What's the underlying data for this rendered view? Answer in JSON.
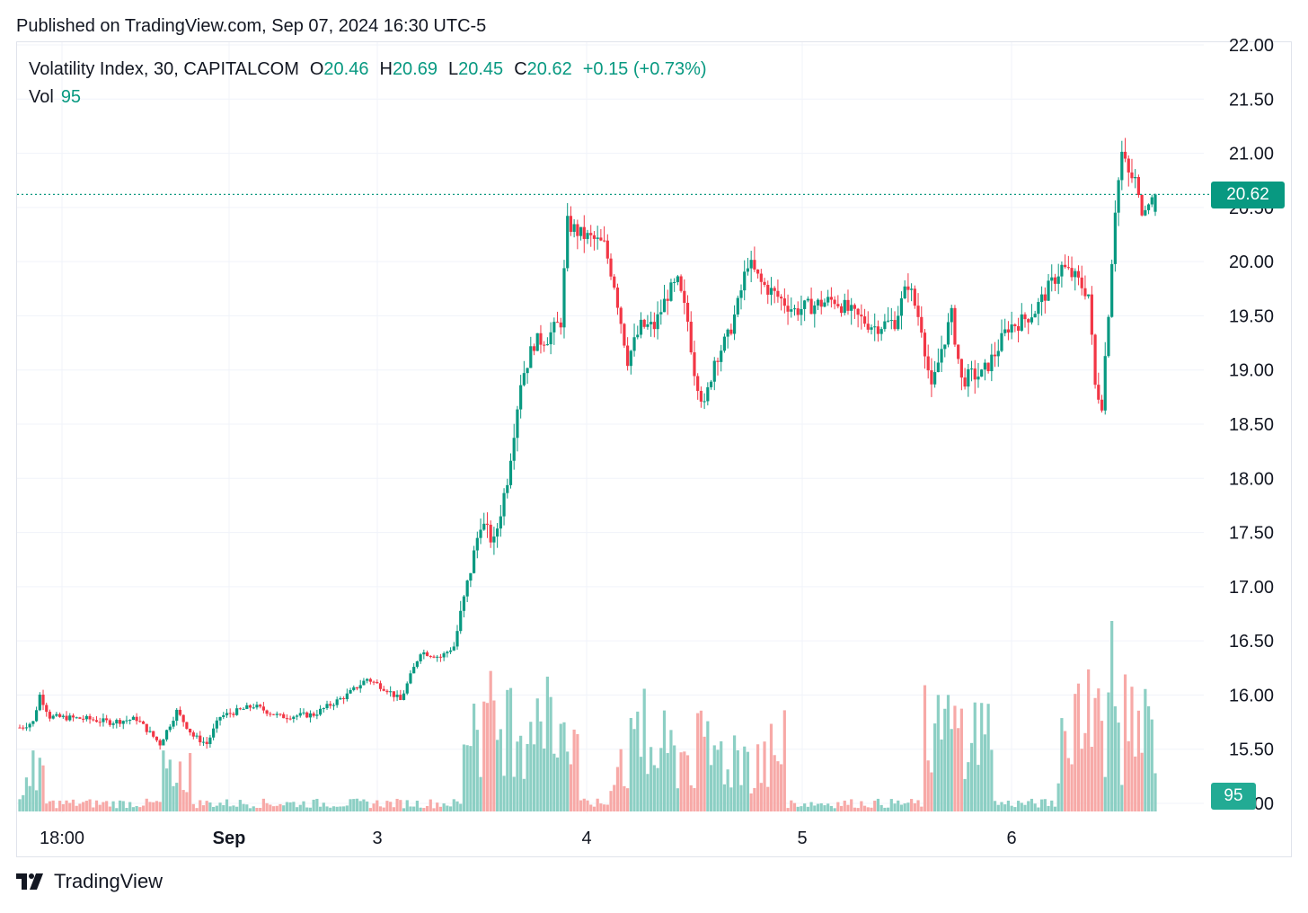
{
  "header": {
    "published": "Published on TradingView.com, Sep 07, 2024 16:30 UTC-5"
  },
  "legend": {
    "symbol": "Volatility Index, 30, CAPITALCOM",
    "open_label": "O",
    "open": "20.46",
    "high_label": "H",
    "high": "20.69",
    "low_label": "L",
    "low": "20.45",
    "close_label": "C",
    "close": "20.62",
    "change": "+0.15 (+0.73%)",
    "vol_label": "Vol",
    "vol": "95"
  },
  "price_tag": "20.62",
  "vol_tag": "95",
  "footer": {
    "brand": "TradingView"
  },
  "colors": {
    "up": "#089981",
    "down": "#f23645",
    "vol_up": "#8ccfc4",
    "vol_down": "#f7a9a7",
    "grid": "#f0f3fa"
  },
  "chart_data": {
    "type": "candlestick",
    "title": "Volatility Index, 30, CAPITALCOM",
    "ylim": [
      14.75,
      22.0
    ],
    "y_ticks": [
      "22.00",
      "21.50",
      "21.00",
      "20.50",
      "20.00",
      "19.50",
      "19.00",
      "18.50",
      "18.00",
      "17.50",
      "17.00",
      "16.50",
      "16.00",
      "15.50",
      "15.00"
    ],
    "x_ticks": [
      {
        "label": "18:00",
        "bold": false
      },
      {
        "label": "Sep",
        "bold": true
      },
      {
        "label": "3",
        "bold": false
      },
      {
        "label": "4",
        "bold": false
      },
      {
        "label": "5",
        "bold": false
      },
      {
        "label": "6",
        "bold": false
      }
    ],
    "last_price": 20.62,
    "volume": [
      {
        "v": 2,
        "d": false
      },
      {
        "v": 12,
        "d": false
      },
      {
        "v": 28,
        "d": false
      },
      {
        "v": 50,
        "d": false
      },
      {
        "v": 44,
        "d": false
      },
      {
        "v": 20,
        "d": true
      },
      {
        "v": 2,
        "d": true
      },
      {
        "v": 1,
        "d": true
      },
      {
        "v": 1,
        "d": true
      },
      {
        "v": 1,
        "d": false
      },
      {
        "v": 1,
        "d": true
      },
      {
        "v": 1,
        "d": true
      },
      {
        "v": 1,
        "d": true
      },
      {
        "v": 1,
        "d": false
      },
      {
        "v": 1,
        "d": true
      },
      {
        "v": 1,
        "d": true
      },
      {
        "v": 1,
        "d": false
      },
      {
        "v": 1,
        "d": true
      },
      {
        "v": 1,
        "d": true
      },
      {
        "v": 1,
        "d": true
      },
      {
        "v": 1,
        "d": false
      },
      {
        "v": 1,
        "d": true
      },
      {
        "v": 1,
        "d": false
      },
      {
        "v": 1,
        "d": true
      },
      {
        "v": 1,
        "d": true
      },
      {
        "v": 2,
        "d": false
      },
      {
        "v": 1,
        "d": true
      },
      {
        "v": 1,
        "d": true
      },
      {
        "v": 1,
        "d": true
      },
      {
        "v": 1,
        "d": true
      },
      {
        "v": 1,
        "d": false
      },
      {
        "v": 1,
        "d": true
      },
      {
        "v": 1,
        "d": true
      },
      {
        "v": 1,
        "d": true
      },
      {
        "v": 3,
        "d": true
      },
      {
        "v": 1,
        "d": false
      },
      {
        "v": 2,
        "d": true
      },
      {
        "v": 5,
        "d": true
      },
      {
        "v": 1,
        "d": true
      },
      {
        "v": 1,
        "d": true
      },
      {
        "v": 14,
        "d": false
      },
      {
        "v": 16,
        "d": false
      },
      {
        "v": 12,
        "d": false
      },
      {
        "v": 14,
        "d": false
      },
      {
        "v": 22,
        "d": false
      },
      {
        "v": 28,
        "d": false
      },
      {
        "v": 22,
        "d": true
      },
      {
        "v": 34,
        "d": true
      },
      {
        "v": 12,
        "d": true
      },
      {
        "v": 10,
        "d": true
      },
      {
        "v": 6,
        "d": true
      },
      {
        "v": 3,
        "d": true
      },
      {
        "v": 1,
        "d": true
      },
      {
        "v": 1,
        "d": false
      },
      {
        "v": 1,
        "d": false
      },
      {
        "v": 1,
        "d": false
      },
      {
        "v": 1,
        "d": false
      },
      {
        "v": 1,
        "d": false
      },
      {
        "v": 1,
        "d": false
      },
      {
        "v": 1,
        "d": false
      },
      {
        "v": 1,
        "d": false
      },
      {
        "v": 1,
        "d": false
      },
      {
        "v": 1,
        "d": false
      },
      {
        "v": 1,
        "d": false
      },
      {
        "v": 1,
        "d": false
      },
      {
        "v": 1,
        "d": false
      },
      {
        "v": 1,
        "d": false
      },
      {
        "v": 1,
        "d": false
      },
      {
        "v": 1,
        "d": false
      },
      {
        "v": 1,
        "d": false
      },
      {
        "v": 1,
        "d": false
      },
      {
        "v": 1,
        "d": false
      },
      {
        "v": 1,
        "d": false
      },
      {
        "v": 1,
        "d": false
      },
      {
        "v": 1,
        "d": false
      },
      {
        "v": 1,
        "d": false
      },
      {
        "v": 1,
        "d": false
      },
      {
        "v": 1,
        "d": false
      },
      {
        "v": 1,
        "d": false
      },
      {
        "v": 1,
        "d": false
      },
      {
        "v": 1,
        "d": false
      },
      {
        "v": 1,
        "d": true
      },
      {
        "v": 1,
        "d": false
      },
      {
        "v": 1,
        "d": false
      },
      {
        "v": 1,
        "d": false
      },
      {
        "v": 1,
        "d": false
      },
      {
        "v": 1,
        "d": false
      },
      {
        "v": 1,
        "d": false
      },
      {
        "v": 1,
        "d": false
      },
      {
        "v": 1,
        "d": false
      },
      {
        "v": 1,
        "d": false
      },
      {
        "v": 1,
        "d": false
      },
      {
        "v": 1,
        "d": false
      },
      {
        "v": 1,
        "d": false
      },
      {
        "v": 1,
        "d": false
      },
      {
        "v": 1,
        "d": false
      },
      {
        "v": 1,
        "d": false
      },
      {
        "v": 1,
        "d": false
      },
      {
        "v": 2,
        "d": false
      },
      {
        "v": 1,
        "d": false
      },
      {
        "v": 1,
        "d": false
      },
      {
        "v": 1,
        "d": false
      },
      {
        "v": 1,
        "d": false
      },
      {
        "v": 1,
        "d": false
      },
      {
        "v": 2,
        "d": false
      },
      {
        "v": 1,
        "d": false
      },
      {
        "v": 1,
        "d": false
      },
      {
        "v": 1,
        "d": false
      },
      {
        "v": 1,
        "d": false
      },
      {
        "v": 1,
        "d": false
      },
      {
        "v": 1,
        "d": false
      },
      {
        "v": 2,
        "d": false
      },
      {
        "v": 1,
        "d": false
      },
      {
        "v": 1,
        "d": false
      },
      {
        "v": 1,
        "d": false
      },
      {
        "v": 1,
        "d": false
      },
      {
        "v": 1,
        "d": false
      },
      {
        "v": 1,
        "d": false
      },
      {
        "v": 1,
        "d": false
      },
      {
        "v": 2,
        "d": false
      },
      {
        "v": 1,
        "d": false
      },
      {
        "v": 1,
        "d": false
      },
      {
        "v": 1,
        "d": false
      },
      {
        "v": 2,
        "d": true
      },
      {
        "v": 2,
        "d": false
      },
      {
        "v": 2,
        "d": true
      },
      {
        "v": 3,
        "d": true
      },
      {
        "v": 2,
        "d": true
      },
      {
        "v": 1,
        "d": true
      },
      {
        "v": 1,
        "d": false
      },
      {
        "v": 1,
        "d": true
      },
      {
        "v": 1,
        "d": false
      },
      {
        "v": 1,
        "d": false
      },
      {
        "v": 1,
        "d": false
      },
      {
        "v": 1,
        "d": false
      },
      {
        "v": 1,
        "d": false
      },
      {
        "v": 1,
        "d": true
      },
      {
        "v": 1,
        "d": false
      },
      {
        "v": 1,
        "d": false
      },
      {
        "v": 2,
        "d": false
      },
      {
        "v": 1,
        "d": false
      },
      {
        "v": 1,
        "d": false
      },
      {
        "v": 1,
        "d": true
      },
      {
        "v": 1,
        "d": false
      },
      {
        "v": 1,
        "d": true
      },
      {
        "v": 1,
        "d": true
      },
      {
        "v": 1,
        "d": true
      },
      {
        "v": 2,
        "d": true
      },
      {
        "v": 1,
        "d": false
      },
      {
        "v": 1,
        "d": false
      },
      {
        "v": 1,
        "d": false
      },
      {
        "v": 1,
        "d": false
      },
      {
        "v": 1,
        "d": false
      },
      {
        "v": 1,
        "d": false
      },
      {
        "v": 1,
        "d": false
      },
      {
        "v": 1,
        "d": false
      },
      {
        "v": 2,
        "d": false
      },
      {
        "v": 1,
        "d": false
      },
      {
        "v": 1,
        "d": false
      },
      {
        "v": 1,
        "d": false
      },
      {
        "v": 1,
        "d": false
      },
      {
        "v": 1,
        "d": false
      },
      {
        "v": 2,
        "d": false
      },
      {
        "v": 1,
        "d": false
      },
      {
        "v": 1,
        "d": false
      },
      {
        "v": 1,
        "d": false
      },
      {
        "v": 1,
        "d": false
      },
      {
        "v": 1,
        "d": false
      },
      {
        "v": 1,
        "d": false
      },
      {
        "v": 1,
        "d": false
      },
      {
        "v": 2,
        "d": false
      },
      {
        "v": 3,
        "d": false
      },
      {
        "v": 1,
        "d": false
      },
      {
        "v": 1,
        "d": false
      },
      {
        "v": 2,
        "d": false
      },
      {
        "v": 1,
        "d": false
      },
      {
        "v": 1,
        "d": false
      },
      {
        "v": 1,
        "d": false
      },
      {
        "v": 1,
        "d": false
      },
      {
        "v": 1,
        "d": false
      },
      {
        "v": 2,
        "d": false
      },
      {
        "v": 1,
        "d": false
      },
      {
        "v": 1,
        "d": false
      },
      {
        "v": 2,
        "d": false
      },
      {
        "v": 1,
        "d": false
      },
      {
        "v": 1,
        "d": false
      },
      {
        "v": 1,
        "d": false
      },
      {
        "v": 1,
        "d": false
      },
      {
        "v": 1,
        "d": false
      },
      {
        "v": 3,
        "d": false
      },
      {
        "v": 1,
        "d": false
      },
      {
        "v": 1,
        "d": false
      },
      {
        "v": 1,
        "d": false
      },
      {
        "v": 1,
        "d": false
      },
      {
        "v": 1,
        "d": false
      },
      {
        "v": 1,
        "d": false
      },
      {
        "v": 1,
        "d": false
      },
      {
        "v": 1,
        "d": false
      },
      {
        "v": 1,
        "d": false
      },
      {
        "v": 1,
        "d": false
      },
      {
        "v": 1,
        "d": false
      },
      {
        "v": 1,
        "d": false
      },
      {
        "v": 1,
        "d": false
      },
      {
        "v": 1,
        "d": false
      },
      {
        "v": 1,
        "d": false
      },
      {
        "v": 1,
        "d": false
      },
      {
        "v": 1,
        "d": false
      },
      {
        "v": 1,
        "d": false
      },
      {
        "v": 1,
        "d": false
      },
      {
        "v": 1,
        "d": false
      },
      {
        "v": 1,
        "d": false
      },
      {
        "v": 1,
        "d": false
      },
      {
        "v": 1,
        "d": false
      },
      {
        "v": 1,
        "d": false
      },
      {
        "v": 1,
        "d": false
      },
      {
        "v": 1,
        "d": false
      },
      {
        "v": 1,
        "d": false
      },
      {
        "v": 1,
        "d": false
      },
      {
        "v": 1,
        "d": false
      },
      {
        "v": 1,
        "d": false
      },
      {
        "v": 1,
        "d": false
      },
      {
        "v": 1,
        "d": false
      },
      {
        "v": 1,
        "d": false
      },
      {
        "v": 1,
        "d": false
      },
      {
        "v": 1,
        "d": false
      },
      {
        "v": 1,
        "d": false
      },
      {
        "v": 1,
        "d": false
      }
    ]
  }
}
